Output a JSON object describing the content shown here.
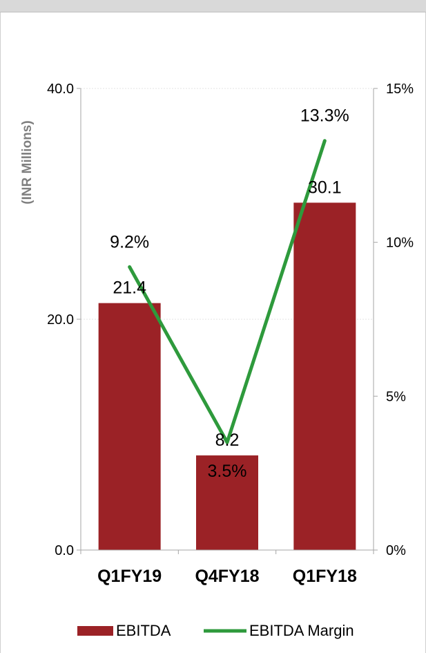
{
  "colors": {
    "bar": "#9b2226",
    "line": "#2e9a3c",
    "axis": "#a6a6a6",
    "grid": "#e3e3e3",
    "inner_label": "#ffffff"
  },
  "chart_data": {
    "type": "bar",
    "categories": [
      "Q1FY19",
      "Q4FY18",
      "Q1FY18"
    ],
    "series": [
      {
        "name": "EBITDA",
        "type": "bar",
        "axis": "left",
        "values": [
          21.4,
          8.2,
          30.1
        ],
        "labels": [
          "21.4",
          "8.2",
          "30.1"
        ]
      },
      {
        "name": "EBITDA Margin",
        "type": "line",
        "axis": "right",
        "values": [
          9.2,
          3.5,
          13.3
        ],
        "labels": [
          "9.2%",
          "3.5%",
          "13.3%"
        ]
      }
    ],
    "ylabel": "(INR Millions)",
    "ylim": [
      0,
      40
    ],
    "y_ticks": [
      "0.0",
      "20.0",
      "40.0"
    ],
    "y2lim": [
      0,
      15
    ],
    "y2_ticks": [
      "0%",
      "5%",
      "10%",
      "15%"
    ],
    "legend": {
      "position": "bottom",
      "entries": [
        "EBITDA",
        "EBITDA Margin"
      ]
    },
    "grid": true
  }
}
